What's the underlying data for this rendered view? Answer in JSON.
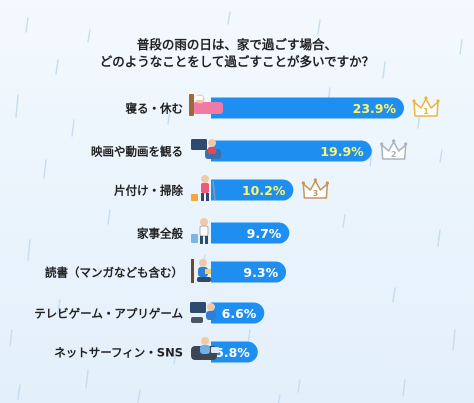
{
  "header": {
    "title_line1": "普段の雨の日は、家で過ごす場合、",
    "title_line2": "どのようなことをして過ごすことが多いですか？"
  },
  "colors": {
    "bar": "#1e8ef0",
    "value_default": "#ffffff",
    "value_top3": "#fff46a",
    "gold": "#e9b73d",
    "silver": "#a9b3bd",
    "bronze": "#c8935d"
  },
  "ranks": [
    {
      "num": "1",
      "medal": "gold"
    },
    {
      "num": "2",
      "medal": "silver"
    },
    {
      "num": "3",
      "medal": "bronze"
    }
  ],
  "chart_data": {
    "type": "bar",
    "orientation": "horizontal",
    "unit": "%",
    "categories": [
      "寝る・休む",
      "映画や動画を観る",
      "片付け・掃除",
      "家事全般",
      "読書（マンガなども含む）",
      "テレビゲーム・アプリゲーム",
      "ネットサーフィン・SNS"
    ],
    "values": [
      23.9,
      19.9,
      10.2,
      9.7,
      9.3,
      6.6,
      5.8
    ],
    "value_labels": [
      "23.9%",
      "19.9%",
      "10.2%",
      "9.7%",
      "9.3%",
      "6.6%",
      "5.8%"
    ],
    "icons": [
      "person-in-bed-icon",
      "person-watching-tv-icon",
      "person-cleaning-icon",
      "person-doing-housework-icon",
      "person-reading-icon",
      "game-console-icon",
      "person-using-laptop-icon"
    ]
  }
}
